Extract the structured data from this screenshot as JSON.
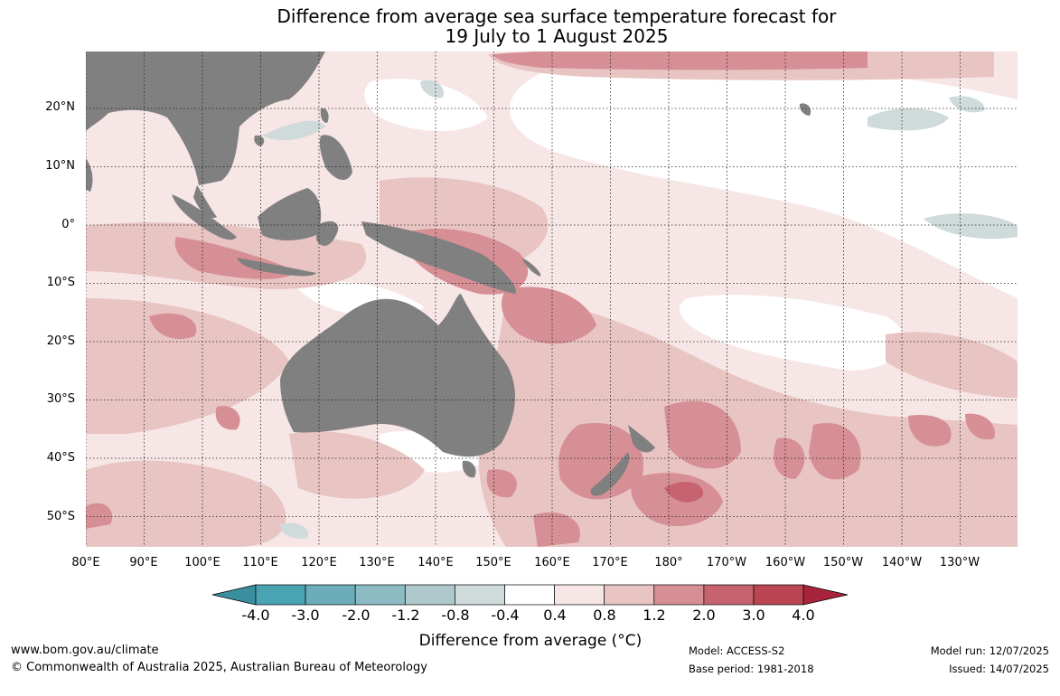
{
  "title": {
    "line1": "Difference from average sea surface temperature forecast for",
    "line2": "19 July to 1 August 2025"
  },
  "map": {
    "projection": "plate-carree",
    "lon_range": [
      "80°E",
      "125°W"
    ],
    "lat_range": [
      "55°S",
      "30°N"
    ],
    "land_color": "#808080",
    "lat_labels": [
      "20°N",
      "10°N",
      "0°",
      "10°S",
      "20°S",
      "30°S",
      "40°S",
      "50°S"
    ],
    "lon_labels": [
      "80°E",
      "90°E",
      "100°E",
      "110°E",
      "120°E",
      "130°E",
      "140°E",
      "150°E",
      "160°E",
      "170°E",
      "180°",
      "170°W",
      "160°W",
      "150°W",
      "140°W",
      "130°W"
    ]
  },
  "colorbar": {
    "colors": [
      "#3a8f9e",
      "#4aa3b2",
      "#6cadb9",
      "#8dbbc4",
      "#aec8cc",
      "#cfdadb",
      "#ffffff",
      "#f6e6e5",
      "#e8c4c2",
      "#d68f94",
      "#c6636e",
      "#bb4552",
      "#a8243a"
    ],
    "tick_labels": [
      "-4.0",
      "-3.0",
      "-2.0",
      "-1.2",
      "-0.8",
      "-0.4",
      "0.4",
      "0.8",
      "1.2",
      "2.0",
      "3.0",
      "4.0"
    ],
    "label": "Difference from average (°C)"
  },
  "footer": {
    "website": "www.bom.gov.au/climate",
    "copyright": "© Commonwealth of Australia 2025, Australian Bureau of Meteorology",
    "model": "Model: ACCESS-S2",
    "base_period": "Base period: 1981-2018",
    "model_run": "Model run: 12/07/2025",
    "issued": "Issued: 14/07/2025"
  }
}
